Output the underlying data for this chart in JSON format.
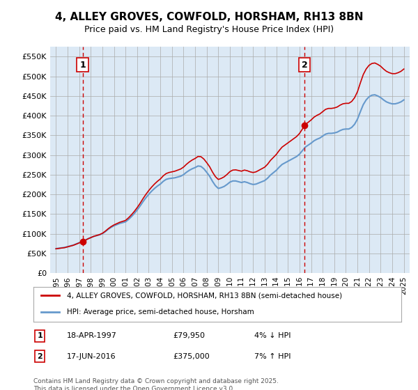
{
  "title": "4, ALLEY GROVES, COWFOLD, HORSHAM, RH13 8BN",
  "subtitle": "Price paid vs. HM Land Registry's House Price Index (HPI)",
  "background_color": "#dce9f5",
  "plot_bg_color": "#dce9f5",
  "ylim": [
    0,
    575000
  ],
  "yticks": [
    0,
    50000,
    100000,
    150000,
    200000,
    250000,
    300000,
    350000,
    400000,
    450000,
    500000,
    550000
  ],
  "ytick_labels": [
    "£0",
    "£50K",
    "£100K",
    "£150K",
    "£200K",
    "£250K",
    "£300K",
    "£350K",
    "£400K",
    "£450K",
    "£500K",
    "£550K"
  ],
  "xlim_start": 1994.5,
  "xlim_end": 2025.5,
  "xticks": [
    1995,
    1996,
    1997,
    1998,
    1999,
    2000,
    2001,
    2002,
    2003,
    2004,
    2005,
    2006,
    2007,
    2008,
    2009,
    2010,
    2011,
    2012,
    2013,
    2014,
    2015,
    2016,
    2017,
    2018,
    2019,
    2020,
    2021,
    2022,
    2023,
    2024,
    2025
  ],
  "marker1_x": 1997.3,
  "marker1_y": 79950,
  "marker1_label": "1",
  "marker1_date": "18-APR-1997",
  "marker1_price": "£79,950",
  "marker1_hpi": "4% ↓ HPI",
  "marker2_x": 2016.45,
  "marker2_y": 375000,
  "marker2_label": "2",
  "marker2_date": "17-JUN-2016",
  "marker2_price": "£375,000",
  "marker2_hpi": "7% ↑ HPI",
  "line1_color": "#cc0000",
  "line2_color": "#6699cc",
  "line1_label": "4, ALLEY GROVES, COWFOLD, HORSHAM, RH13 8BN (semi-detached house)",
  "line2_label": "HPI: Average price, semi-detached house, Horsham",
  "footer": "Contains HM Land Registry data © Crown copyright and database right 2025.\nThis data is licensed under the Open Government Licence v3.0.",
  "hpi_data_x": [
    1995.0,
    1995.25,
    1995.5,
    1995.75,
    1996.0,
    1996.25,
    1996.5,
    1996.75,
    1997.0,
    1997.25,
    1997.5,
    1997.75,
    1998.0,
    1998.25,
    1998.5,
    1998.75,
    1999.0,
    1999.25,
    1999.5,
    1999.75,
    2000.0,
    2000.25,
    2000.5,
    2000.75,
    2001.0,
    2001.25,
    2001.5,
    2001.75,
    2002.0,
    2002.25,
    2002.5,
    2002.75,
    2003.0,
    2003.25,
    2003.5,
    2003.75,
    2004.0,
    2004.25,
    2004.5,
    2004.75,
    2005.0,
    2005.25,
    2005.5,
    2005.75,
    2006.0,
    2006.25,
    2006.5,
    2006.75,
    2007.0,
    2007.25,
    2007.5,
    2007.75,
    2008.0,
    2008.25,
    2008.5,
    2008.75,
    2009.0,
    2009.25,
    2009.5,
    2009.75,
    2010.0,
    2010.25,
    2010.5,
    2010.75,
    2011.0,
    2011.25,
    2011.5,
    2011.75,
    2012.0,
    2012.25,
    2012.5,
    2012.75,
    2013.0,
    2013.25,
    2013.5,
    2013.75,
    2014.0,
    2014.25,
    2014.5,
    2014.75,
    2015.0,
    2015.25,
    2015.5,
    2015.75,
    2016.0,
    2016.25,
    2016.5,
    2016.75,
    2017.0,
    2017.25,
    2017.5,
    2017.75,
    2018.0,
    2018.25,
    2018.5,
    2018.75,
    2019.0,
    2019.25,
    2019.5,
    2019.75,
    2020.0,
    2020.25,
    2020.5,
    2020.75,
    2021.0,
    2021.25,
    2021.5,
    2021.75,
    2022.0,
    2022.25,
    2022.5,
    2022.75,
    2023.0,
    2023.25,
    2023.5,
    2023.75,
    2024.0,
    2024.25,
    2024.5,
    2024.75,
    2025.0
  ],
  "hpi_data_y": [
    62000,
    63000,
    64000,
    65000,
    67000,
    69000,
    71000,
    74000,
    77000,
    80000,
    83000,
    87000,
    90000,
    93000,
    95000,
    97000,
    100000,
    105000,
    111000,
    116000,
    120000,
    123000,
    126000,
    128000,
    130000,
    136000,
    143000,
    151000,
    160000,
    170000,
    181000,
    191000,
    200000,
    208000,
    215000,
    221000,
    226000,
    233000,
    238000,
    240000,
    241000,
    242000,
    244000,
    246000,
    250000,
    256000,
    261000,
    265000,
    268000,
    272000,
    271000,
    265000,
    256000,
    246000,
    233000,
    222000,
    215000,
    217000,
    220000,
    225000,
    231000,
    234000,
    234000,
    232000,
    230000,
    232000,
    230000,
    227000,
    225000,
    226000,
    229000,
    232000,
    235000,
    241000,
    249000,
    255000,
    261000,
    269000,
    276000,
    280000,
    284000,
    288000,
    292000,
    296000,
    302000,
    311000,
    320000,
    325000,
    330000,
    336000,
    340000,
    343000,
    348000,
    353000,
    355000,
    355000,
    356000,
    358000,
    362000,
    365000,
    366000,
    366000,
    370000,
    378000,
    391000,
    410000,
    428000,
    440000,
    448000,
    452000,
    453000,
    450000,
    446000,
    440000,
    435000,
    432000,
    430000,
    430000,
    432000,
    435000,
    440000
  ],
  "price_data_x": [
    1997.3,
    2016.45
  ],
  "price_data_y": [
    79950,
    375000
  ]
}
